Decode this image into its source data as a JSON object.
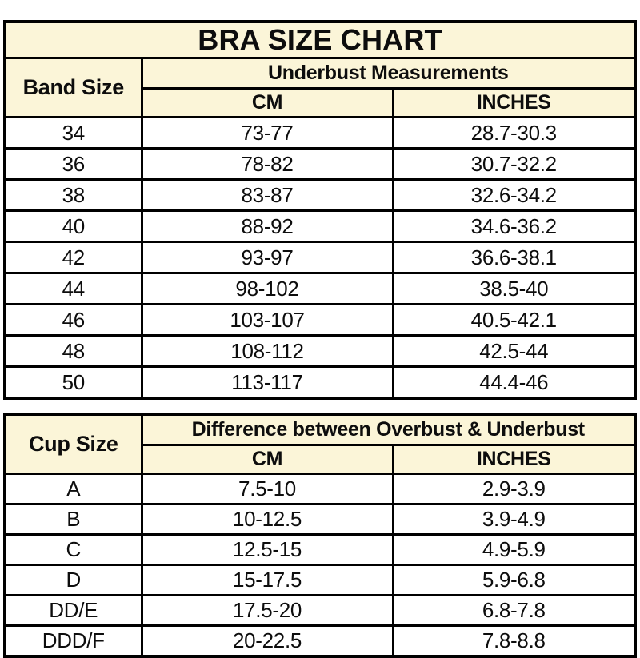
{
  "colors": {
    "header_bg": "#FBF5D8",
    "border": "#000000",
    "row_bg": "#FFFFFF",
    "text": "#0D0D0D"
  },
  "band_table": {
    "title": "BRA SIZE CHART",
    "row_header": "Band Size",
    "group_header": "Underbust Measurements",
    "columns": {
      "cm": "CM",
      "inches": "INCHES"
    },
    "rows": [
      {
        "band": "34",
        "cm": "73-77",
        "inches": "28.7-30.3"
      },
      {
        "band": "36",
        "cm": "78-82",
        "inches": "30.7-32.2"
      },
      {
        "band": "38",
        "cm": "83-87",
        "inches": "32.6-34.2"
      },
      {
        "band": "40",
        "cm": "88-92",
        "inches": "34.6-36.2"
      },
      {
        "band": "42",
        "cm": "93-97",
        "inches": "36.6-38.1"
      },
      {
        "band": "44",
        "cm": "98-102",
        "inches": "38.5-40"
      },
      {
        "band": "46",
        "cm": "103-107",
        "inches": "40.5-42.1"
      },
      {
        "band": "48",
        "cm": "108-112",
        "inches": "42.5-44"
      },
      {
        "band": "50",
        "cm": "113-117",
        "inches": "44.4-46"
      }
    ]
  },
  "cup_table": {
    "row_header": "Cup Size",
    "group_header": "Difference between Overbust & Underbust",
    "columns": {
      "cm": "CM",
      "inches": "INCHES"
    },
    "rows": [
      {
        "cup": "A",
        "cm": "7.5-10",
        "inches": "2.9-3.9"
      },
      {
        "cup": "B",
        "cm": "10-12.5",
        "inches": "3.9-4.9"
      },
      {
        "cup": "C",
        "cm": "12.5-15",
        "inches": "4.9-5.9"
      },
      {
        "cup": "D",
        "cm": "15-17.5",
        "inches": "5.9-6.8"
      },
      {
        "cup": "DD/E",
        "cm": "17.5-20",
        "inches": "6.8-7.8"
      },
      {
        "cup": "DDD/F",
        "cm": "20-22.5",
        "inches": "7.8-8.8"
      }
    ]
  },
  "chart_data": [
    {
      "type": "table",
      "title": "BRA SIZE CHART",
      "columns": [
        "Band Size",
        "Underbust Measurements CM",
        "Underbust Measurements INCHES"
      ],
      "rows": [
        [
          "34",
          "73-77",
          "28.7-30.3"
        ],
        [
          "36",
          "78-82",
          "30.7-32.2"
        ],
        [
          "38",
          "83-87",
          "32.6-34.2"
        ],
        [
          "40",
          "88-92",
          "34.6-36.2"
        ],
        [
          "42",
          "93-97",
          "36.6-38.1"
        ],
        [
          "44",
          "98-102",
          "38.5-40"
        ],
        [
          "46",
          "103-107",
          "40.5-42.1"
        ],
        [
          "48",
          "108-112",
          "42.5-44"
        ],
        [
          "50",
          "113-117",
          "44.4-46"
        ]
      ]
    },
    {
      "type": "table",
      "title": "Cup Size - Difference between Overbust & Underbust",
      "columns": [
        "Cup Size",
        "Difference CM",
        "Difference INCHES"
      ],
      "rows": [
        [
          "A",
          "7.5-10",
          "2.9-3.9"
        ],
        [
          "B",
          "10-12.5",
          "3.9-4.9"
        ],
        [
          "C",
          "12.5-15",
          "4.9-5.9"
        ],
        [
          "D",
          "15-17.5",
          "5.9-6.8"
        ],
        [
          "DD/E",
          "17.5-20",
          "6.8-7.8"
        ],
        [
          "DDD/F",
          "20-22.5",
          "7.8-8.8"
        ]
      ]
    }
  ]
}
